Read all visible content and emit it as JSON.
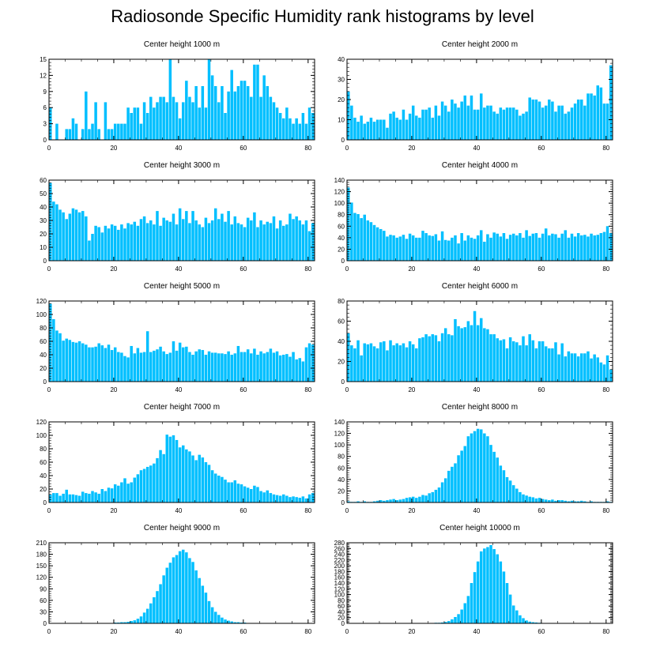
{
  "title": "Radiosonde Specific Humidity rank histograms by level",
  "bar_color": "#00bfff",
  "chart_data": [
    {
      "type": "bar",
      "title": "Center height 1000 m",
      "xlim": [
        0,
        82
      ],
      "ylim": [
        0,
        15
      ],
      "yticks": [
        0,
        3,
        6,
        9,
        12,
        15
      ],
      "xticks": [
        0,
        20,
        40,
        60,
        80
      ],
      "values": [
        6,
        0,
        3,
        0,
        0,
        2,
        2,
        4,
        3,
        0,
        2,
        9,
        2,
        3,
        7,
        2,
        0,
        7,
        2,
        2,
        3,
        3,
        3,
        3,
        6,
        5,
        6,
        6,
        3,
        7,
        5,
        8,
        6,
        7,
        8,
        8,
        7,
        15,
        8,
        7,
        4,
        7,
        11,
        8,
        7,
        10,
        6,
        10,
        6,
        15,
        12,
        10,
        7,
        10,
        5,
        9,
        13,
        9,
        10,
        11,
        11,
        10,
        8,
        14,
        14,
        8,
        12,
        10,
        8,
        7,
        6,
        5,
        4,
        6,
        4,
        3,
        4,
        3,
        5,
        3,
        6,
        5
      ]
    },
    {
      "type": "bar",
      "title": "Center height 2000 m",
      "xlim": [
        0,
        82
      ],
      "ylim": [
        0,
        40
      ],
      "yticks": [
        0,
        10,
        20,
        30,
        40
      ],
      "xticks": [
        0,
        20,
        40,
        60,
        80
      ],
      "values": [
        24,
        17,
        11,
        9,
        12,
        8,
        9,
        11,
        9,
        10,
        10,
        10,
        6,
        13,
        14,
        11,
        10,
        15,
        10,
        13,
        17,
        12,
        11,
        15,
        15,
        16,
        11,
        17,
        12,
        19,
        17,
        14,
        20,
        18,
        16,
        19,
        22,
        17,
        22,
        15,
        15,
        23,
        16,
        17,
        17,
        14,
        13,
        16,
        15,
        16,
        16,
        16,
        15,
        12,
        13,
        14,
        21,
        20,
        20,
        19,
        16,
        17,
        20,
        19,
        14,
        17,
        17,
        13,
        14,
        16,
        18,
        20,
        20,
        17,
        23,
        23,
        22,
        27,
        26,
        18,
        18,
        37
      ]
    },
    {
      "type": "bar",
      "title": "Center height 3000 m",
      "xlim": [
        0,
        82
      ],
      "ylim": [
        0,
        60
      ],
      "yticks": [
        0,
        10,
        20,
        30,
        40,
        50,
        60
      ],
      "xticks": [
        0,
        20,
        40,
        60,
        80
      ],
      "values": [
        58,
        44,
        42,
        38,
        36,
        31,
        35,
        39,
        38,
        36,
        37,
        33,
        15,
        20,
        26,
        25,
        21,
        26,
        24,
        27,
        26,
        23,
        27,
        24,
        28,
        27,
        29,
        26,
        31,
        33,
        28,
        30,
        27,
        37,
        26,
        32,
        30,
        29,
        35,
        27,
        39,
        31,
        37,
        28,
        37,
        30,
        27,
        25,
        32,
        28,
        30,
        39,
        31,
        35,
        29,
        37,
        27,
        33,
        28,
        27,
        25,
        32,
        30,
        36,
        25,
        30,
        27,
        29,
        28,
        33,
        24,
        30,
        26,
        27,
        35,
        31,
        33,
        30,
        27,
        30,
        22,
        28
      ]
    },
    {
      "type": "bar",
      "title": "Center height 4000 m",
      "xlim": [
        0,
        82
      ],
      "ylim": [
        0,
        140
      ],
      "yticks": [
        0,
        20,
        40,
        60,
        80,
        100,
        120,
        140
      ],
      "xticks": [
        0,
        20,
        40,
        60,
        80
      ],
      "values": [
        127,
        101,
        83,
        81,
        74,
        80,
        70,
        67,
        62,
        58,
        55,
        52,
        42,
        45,
        44,
        40,
        42,
        45,
        38,
        47,
        44,
        40,
        40,
        52,
        48,
        44,
        43,
        46,
        35,
        51,
        36,
        35,
        40,
        44,
        30,
        48,
        35,
        44,
        40,
        38,
        44,
        53,
        33,
        46,
        40,
        49,
        47,
        42,
        48,
        38,
        45,
        47,
        44,
        48,
        40,
        53,
        43,
        47,
        48,
        40,
        47,
        56,
        44,
        47,
        46,
        40,
        47,
        53,
        40,
        47,
        42,
        48,
        44,
        45,
        42,
        47,
        44,
        45,
        48,
        50,
        60,
        48
      ]
    },
    {
      "type": "bar",
      "title": "Center height 5000 m",
      "xlim": [
        0,
        82
      ],
      "ylim": [
        0,
        120
      ],
      "yticks": [
        0,
        20,
        40,
        60,
        80,
        100,
        120
      ],
      "xticks": [
        0,
        20,
        40,
        60,
        80
      ],
      "values": [
        116,
        93,
        76,
        72,
        61,
        64,
        62,
        59,
        58,
        60,
        57,
        55,
        51,
        51,
        52,
        57,
        54,
        50,
        55,
        47,
        51,
        44,
        43,
        38,
        36,
        53,
        42,
        50,
        43,
        44,
        75,
        44,
        46,
        48,
        52,
        45,
        41,
        43,
        60,
        46,
        58,
        51,
        52,
        44,
        40,
        45,
        48,
        47,
        40,
        45,
        43,
        43,
        42,
        42,
        41,
        45,
        40,
        42,
        53,
        44,
        44,
        48,
        42,
        49,
        40,
        45,
        42,
        44,
        49,
        43,
        45,
        39,
        40,
        41,
        37,
        44,
        33,
        35,
        30,
        51,
        57,
        55
      ]
    },
    {
      "type": "bar",
      "title": "Center height 6000 m",
      "xlim": [
        0,
        82
      ],
      "ylim": [
        0,
        80
      ],
      "yticks": [
        0,
        20,
        40,
        60,
        80
      ],
      "xticks": [
        0,
        20,
        40,
        60,
        80
      ],
      "values": [
        48,
        36,
        33,
        41,
        26,
        38,
        37,
        38,
        35,
        33,
        39,
        40,
        31,
        41,
        36,
        38,
        36,
        38,
        34,
        40,
        37,
        33,
        43,
        44,
        47,
        45,
        47,
        46,
        40,
        48,
        53,
        47,
        46,
        62,
        55,
        53,
        54,
        60,
        56,
        70,
        56,
        63,
        53,
        52,
        47,
        47,
        43,
        41,
        42,
        33,
        44,
        40,
        39,
        36,
        45,
        36,
        47,
        41,
        33,
        40,
        40,
        35,
        33,
        33,
        39,
        27,
        38,
        25,
        30,
        28,
        28,
        25,
        28,
        28,
        30,
        23,
        27,
        24,
        19,
        17,
        26,
        12
      ]
    },
    {
      "type": "bar",
      "title": "Center height 7000 m",
      "xlim": [
        0,
        82
      ],
      "ylim": [
        0,
        120
      ],
      "yticks": [
        0,
        20,
        40,
        60,
        80,
        100,
        120
      ],
      "xticks": [
        0,
        20,
        40,
        60,
        80
      ],
      "values": [
        12,
        14,
        14,
        10,
        13,
        19,
        12,
        12,
        11,
        10,
        16,
        14,
        13,
        17,
        15,
        13,
        20,
        17,
        22,
        21,
        27,
        25,
        30,
        36,
        28,
        30,
        37,
        42,
        48,
        50,
        53,
        55,
        58,
        66,
        78,
        72,
        101,
        98,
        100,
        93,
        82,
        85,
        79,
        76,
        70,
        63,
        71,
        67,
        60,
        56,
        48,
        43,
        40,
        38,
        34,
        30,
        30,
        33,
        28,
        27,
        24,
        22,
        20,
        25,
        23,
        17,
        15,
        18,
        14,
        12,
        11,
        10,
        12,
        10,
        8,
        9,
        8,
        7,
        9,
        6,
        12,
        14
      ]
    },
    {
      "type": "bar",
      "title": "Center height 8000 m",
      "xlim": [
        0,
        82
      ],
      "ylim": [
        0,
        140
      ],
      "yticks": [
        0,
        20,
        40,
        60,
        80,
        100,
        120,
        140
      ],
      "xticks": [
        0,
        20,
        40,
        60,
        80
      ],
      "values": [
        2,
        1,
        1,
        2,
        1,
        2,
        1,
        1,
        2,
        3,
        4,
        3,
        4,
        5,
        6,
        4,
        5,
        6,
        8,
        9,
        10,
        8,
        10,
        13,
        12,
        16,
        18,
        22,
        26,
        35,
        42,
        55,
        62,
        68,
        82,
        90,
        98,
        115,
        120,
        124,
        128,
        127,
        120,
        115,
        100,
        88,
        78,
        64,
        56,
        44,
        38,
        30,
        24,
        18,
        14,
        12,
        10,
        9,
        7,
        8,
        6,
        5,
        4,
        5,
        3,
        4,
        4,
        3,
        2,
        3,
        2,
        2,
        3,
        2,
        1,
        2,
        1,
        1,
        1,
        1,
        2,
        1
      ]
    },
    {
      "type": "bar",
      "title": "Center height 9000 m",
      "xlim": [
        0,
        82
      ],
      "ylim": [
        0,
        210
      ],
      "yticks": [
        0,
        30,
        60,
        90,
        120,
        150,
        180,
        210
      ],
      "xticks": [
        0,
        20,
        40,
        60,
        80
      ],
      "values": [
        0,
        0,
        0,
        0,
        0,
        0,
        0,
        0,
        0,
        0,
        0,
        0,
        0,
        0,
        0,
        0,
        0,
        0,
        0,
        1,
        2,
        2,
        3,
        3,
        4,
        6,
        8,
        12,
        18,
        28,
        38,
        52,
        68,
        84,
        102,
        125,
        145,
        158,
        172,
        178,
        188,
        192,
        185,
        170,
        160,
        138,
        118,
        98,
        80,
        58,
        42,
        30,
        22,
        15,
        10,
        7,
        5,
        3,
        3,
        2,
        2,
        1,
        1,
        1,
        1,
        1,
        0,
        1,
        0,
        0,
        0,
        0,
        0,
        0,
        0,
        0,
        0,
        0,
        0,
        0,
        0,
        0
      ]
    },
    {
      "type": "bar",
      "title": "Center height 10000 m",
      "xlim": [
        0,
        82
      ],
      "ylim": [
        0,
        280
      ],
      "yticks": [
        0,
        20,
        40,
        60,
        80,
        100,
        120,
        140,
        160,
        180,
        200,
        220,
        240,
        260,
        280
      ],
      "xticks": [
        0,
        20,
        40,
        60,
        80
      ],
      "values": [
        0,
        0,
        0,
        0,
        0,
        0,
        0,
        0,
        0,
        0,
        0,
        0,
        0,
        0,
        0,
        0,
        0,
        0,
        0,
        0,
        0,
        0,
        0,
        0,
        0,
        0,
        1,
        2,
        2,
        3,
        5,
        8,
        14,
        22,
        32,
        48,
        70,
        95,
        140,
        178,
        215,
        250,
        260,
        265,
        272,
        258,
        240,
        215,
        180,
        140,
        100,
        62,
        45,
        28,
        18,
        10,
        6,
        4,
        3,
        2,
        1,
        1,
        1,
        1,
        0,
        0,
        0,
        0,
        0,
        0,
        0,
        0,
        0,
        0,
        0,
        0,
        0,
        0,
        0,
        0,
        0,
        0
      ]
    }
  ]
}
